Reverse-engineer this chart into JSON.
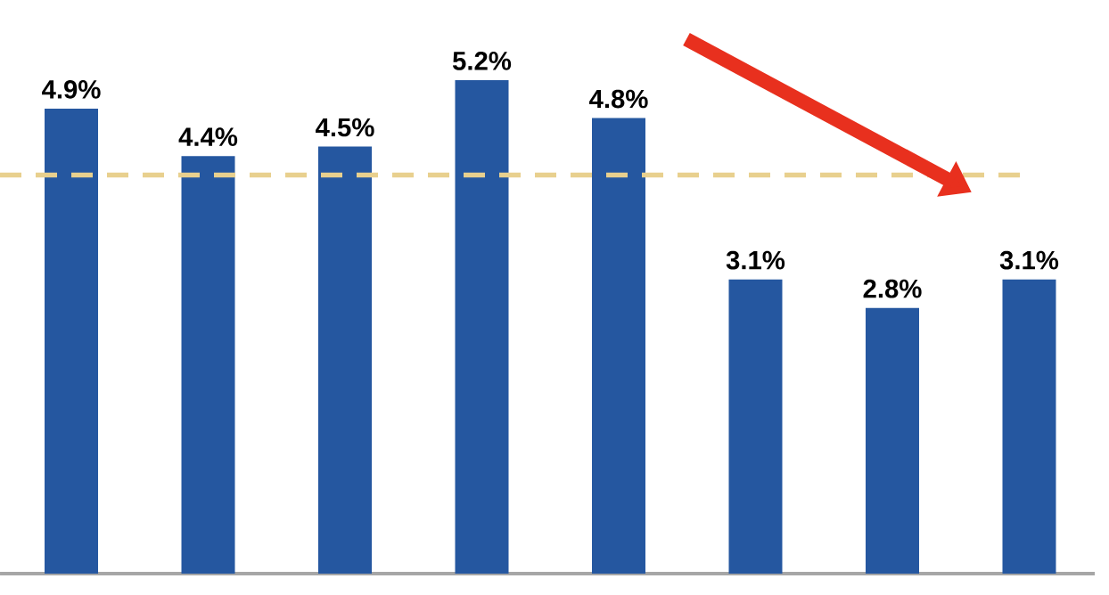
{
  "chart_data": {
    "type": "bar",
    "categories": [
      null,
      null,
      null,
      null,
      null,
      null,
      null,
      null
    ],
    "values": [
      4.9,
      4.4,
      4.5,
      5.2,
      4.8,
      3.1,
      2.8,
      3.1
    ],
    "value_labels": [
      "4.9%",
      "4.4%",
      "4.5%",
      "5.2%",
      "4.8%",
      "3.1%",
      "2.8%",
      "3.1%"
    ],
    "color": "#2557a0",
    "ref_lines": [
      {
        "axis": "y",
        "value": 4.2,
        "color": "#e8d08e",
        "line_style": "dashed"
      }
    ]
  }
}
